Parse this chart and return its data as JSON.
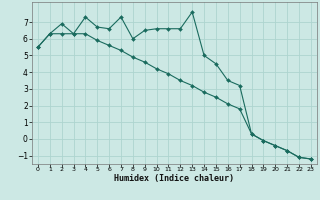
{
  "xlabel": "Humidex (Indice chaleur)",
  "ylabel": "",
  "background_color": "#cce8e4",
  "grid_color": "#aed4cf",
  "line_color": "#1a6b5e",
  "xlim": [
    -0.5,
    23.5
  ],
  "ylim": [
    -1.5,
    8.2
  ],
  "xticks": [
    0,
    1,
    2,
    3,
    4,
    5,
    6,
    7,
    8,
    9,
    10,
    11,
    12,
    13,
    14,
    15,
    16,
    17,
    18,
    19,
    20,
    21,
    22,
    23
  ],
  "yticks": [
    -1,
    0,
    1,
    2,
    3,
    4,
    5,
    6,
    7
  ],
  "series1_x": [
    0,
    1,
    2,
    3,
    4,
    5,
    6,
    7,
    8,
    9,
    10,
    11,
    12,
    13,
    14,
    15,
    16,
    17,
    18,
    19,
    20,
    21,
    22,
    23
  ],
  "series1_y": [
    5.5,
    6.3,
    6.9,
    6.3,
    7.3,
    6.7,
    6.6,
    7.3,
    6.0,
    6.5,
    6.6,
    6.6,
    6.6,
    7.6,
    5.0,
    4.5,
    3.5,
    3.2,
    0.3,
    -0.1,
    -0.4,
    -0.7,
    -1.1,
    -1.2
  ],
  "series2_x": [
    0,
    1,
    2,
    3,
    4,
    5,
    6,
    7,
    8,
    9,
    10,
    11,
    12,
    13,
    14,
    15,
    16,
    17,
    18,
    19,
    20,
    21,
    22,
    23
  ],
  "series2_y": [
    5.5,
    6.3,
    6.3,
    6.3,
    6.3,
    5.9,
    5.6,
    5.3,
    4.9,
    4.6,
    4.2,
    3.9,
    3.5,
    3.2,
    2.8,
    2.5,
    2.1,
    1.8,
    0.3,
    -0.1,
    -0.4,
    -0.7,
    -1.1,
    -1.2
  ]
}
